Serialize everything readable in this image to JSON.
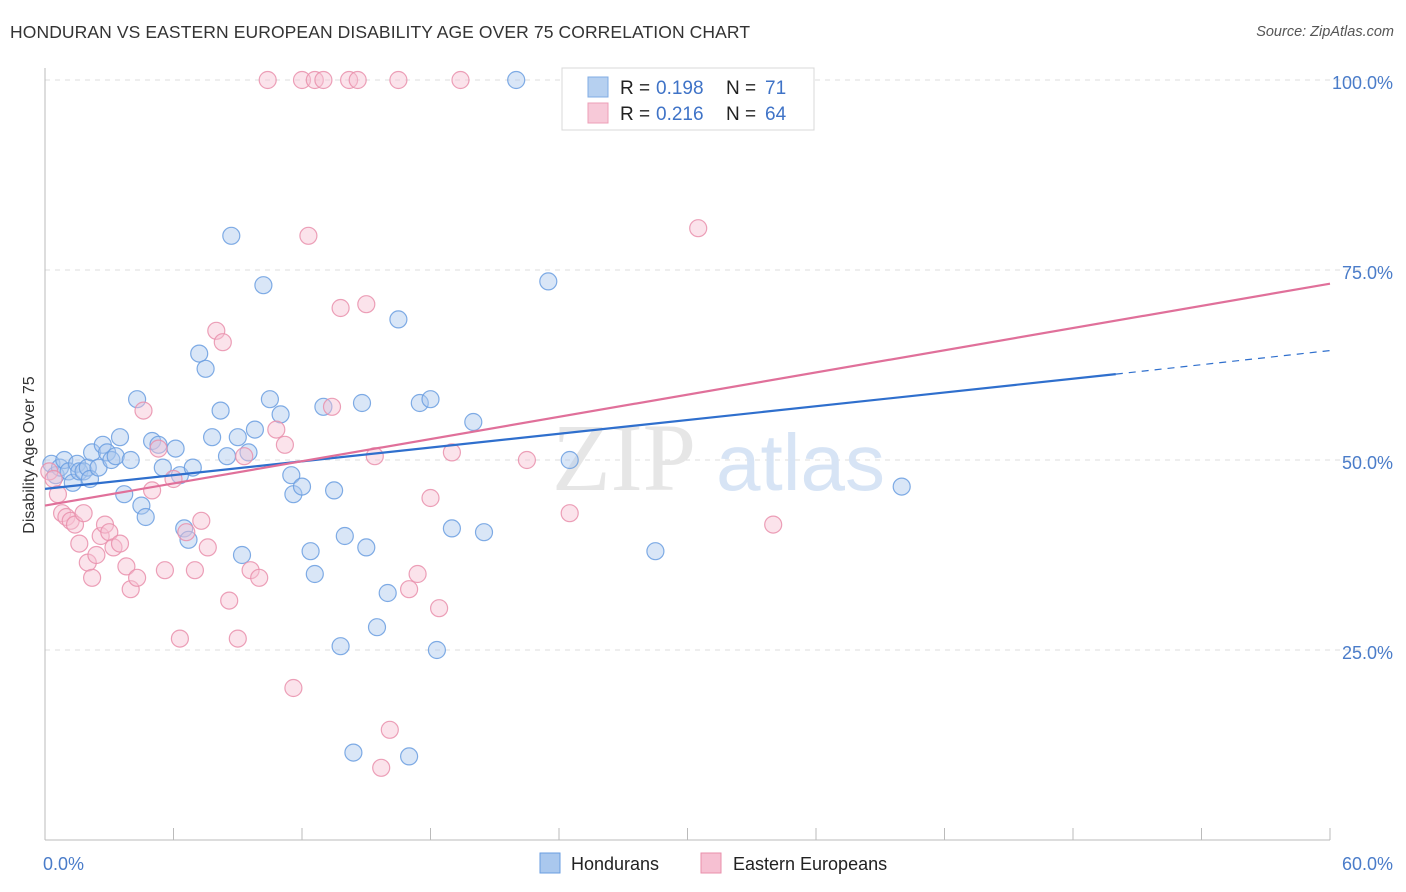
{
  "header": {
    "title": "HONDURAN VS EASTERN EUROPEAN DISABILITY AGE OVER 75 CORRELATION CHART",
    "source": "Source: ZipAtlas.com"
  },
  "watermark": {
    "zip": "ZIP",
    "atlas": "atlas"
  },
  "stats_legend": [
    {
      "r_label": "R =",
      "r_value": "0.198",
      "n_label": "N =",
      "n_value": "71"
    },
    {
      "r_label": "R =",
      "r_value": "0.216",
      "n_label": "N =",
      "n_value": "64"
    }
  ],
  "chart_data": {
    "type": "scatter",
    "title": "HONDURAN VS EASTERN EUROPEAN DISABILITY AGE OVER 75 CORRELATION CHART",
    "xlabel": "",
    "ylabel": "Disability Age Over 75",
    "xlim": [
      0,
      60
    ],
    "ylim": [
      0,
      105
    ],
    "x_tick_labels": [
      "0.0%",
      "60.0%"
    ],
    "y_ticks": [
      25,
      50,
      75,
      100
    ],
    "y_tick_labels": [
      "25.0%",
      "50.0%",
      "75.0%",
      "100.0%"
    ],
    "grid": true,
    "legend_position": "bottom",
    "colors": {
      "Hondurans": "#6a9ee0",
      "Hondurans_fill": "#aac8ee",
      "Eastern Europeans": "#e98fab",
      "Eastern Europeans_fill": "#f6c0d2",
      "Hondurans_line": "#2f6fcd",
      "Eastern Europeans_line": "#e0709a"
    },
    "series": [
      {
        "name": "Hondurans",
        "x": [
          0.3,
          0.5,
          0.7,
          0.9,
          1.1,
          1.3,
          1.5,
          1.6,
          1.8,
          2.0,
          2.1,
          2.2,
          2.5,
          2.7,
          2.9,
          3.1,
          3.3,
          3.5,
          3.7,
          4.0,
          4.3,
          4.5,
          4.7,
          5.0,
          5.3,
          5.5,
          6.1,
          6.3,
          6.5,
          6.7,
          6.9,
          7.2,
          7.5,
          7.8,
          8.2,
          8.5,
          8.7,
          9.0,
          9.2,
          9.5,
          9.8,
          10.2,
          10.5,
          11.0,
          11.5,
          11.6,
          12.0,
          12.4,
          12.6,
          13.0,
          13.5,
          13.8,
          14.0,
          14.4,
          14.8,
          15.0,
          15.5,
          16.0,
          16.5,
          17.0,
          17.5,
          18.0,
          18.3,
          19.0,
          20.0,
          20.5,
          22.0,
          23.5,
          24.5,
          28.5,
          40.0
        ],
        "y": [
          49.5,
          48.0,
          49.0,
          50.0,
          48.5,
          47.0,
          49.5,
          48.5,
          48.5,
          49.0,
          47.5,
          51.0,
          49.0,
          52.0,
          51.0,
          50.0,
          50.5,
          53.0,
          45.5,
          50.0,
          58.0,
          44.0,
          42.5,
          52.5,
          52.0,
          49.0,
          51.5,
          48.0,
          41.0,
          39.5,
          49.0,
          64.0,
          62.0,
          53.0,
          56.5,
          50.5,
          79.5,
          53.0,
          37.5,
          51.0,
          54.0,
          73.0,
          58.0,
          56.0,
          48.0,
          45.5,
          46.5,
          38.0,
          35.0,
          57.0,
          46.0,
          25.5,
          40.0,
          11.5,
          57.5,
          38.5,
          28.0,
          32.5,
          68.5,
          11.0,
          57.5,
          58.0,
          25.0,
          41.0,
          55.0,
          40.5,
          100.0,
          73.5,
          50.0,
          38.0,
          46.5
        ]
      },
      {
        "name": "Eastern Europeans",
        "x": [
          0.2,
          0.4,
          0.6,
          0.8,
          1.0,
          1.2,
          1.4,
          1.6,
          1.8,
          2.0,
          2.2,
          2.4,
          2.6,
          2.8,
          3.0,
          3.2,
          3.5,
          3.8,
          4.0,
          4.3,
          4.6,
          5.0,
          5.3,
          5.6,
          6.0,
          6.3,
          6.6,
          7.0,
          7.3,
          7.6,
          8.0,
          8.3,
          8.6,
          9.0,
          9.3,
          9.6,
          10.0,
          10.4,
          10.8,
          11.2,
          11.6,
          12.0,
          12.3,
          12.6,
          13.0,
          13.4,
          13.8,
          14.2,
          14.6,
          15.0,
          15.4,
          15.7,
          16.1,
          16.5,
          17.0,
          17.4,
          18.0,
          18.4,
          19.0,
          19.4,
          22.5,
          24.5,
          30.5,
          34.0
        ],
        "y": [
          48.5,
          47.5,
          45.5,
          43.0,
          42.5,
          42.0,
          41.5,
          39.0,
          43.0,
          36.5,
          34.5,
          37.5,
          40.0,
          41.5,
          40.5,
          38.5,
          39.0,
          36.0,
          33.0,
          34.5,
          56.5,
          46.0,
          51.5,
          35.5,
          47.5,
          26.5,
          40.5,
          35.5,
          42.0,
          38.5,
          67.0,
          65.5,
          31.5,
          26.5,
          50.5,
          35.5,
          34.5,
          100.0,
          54.0,
          52.0,
          20.0,
          100.0,
          79.5,
          100.0,
          100.0,
          57.0,
          70.0,
          100.0,
          100.0,
          70.5,
          50.5,
          9.5,
          14.5,
          100.0,
          33.0,
          35.0,
          45.0,
          30.5,
          51.0,
          100.0,
          50.0,
          43.0,
          80.5,
          41.5
        ]
      }
    ],
    "trend_lines": [
      {
        "series": "Hondurans",
        "x": [
          0,
          50,
          60
        ],
        "y": [
          46.2,
          61.3,
          64.4
        ],
        "dashed_from_x": 50
      },
      {
        "series": "Eastern Europeans",
        "x": [
          0,
          60
        ],
        "y": [
          44.0,
          73.2
        ]
      }
    ]
  },
  "bottom_legend": [
    {
      "label": "Hondurans"
    },
    {
      "label": "Eastern Europeans"
    }
  ]
}
